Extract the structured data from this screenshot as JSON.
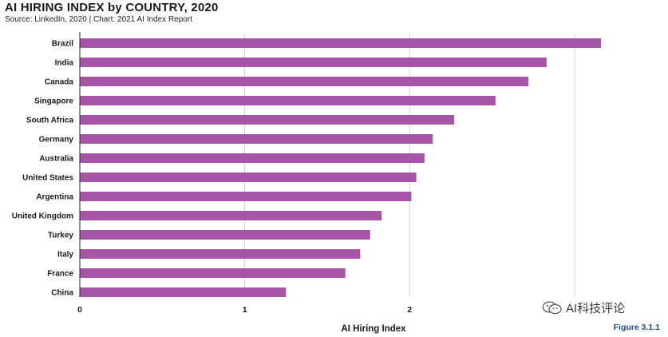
{
  "header": {
    "title": "AI HIRING INDEX by COUNTRY, 2020",
    "subtitle": "Source: LinkedIn, 2020 | Chart: 2021 AI Index Report"
  },
  "watermark": {
    "text": "AI科技评论",
    "icon": "wechat-logo-icon"
  },
  "figure_label": "Figure 3.1.1",
  "colors": {
    "bar": "#a855a8",
    "grid": "#d0d0d0",
    "axis": "#222222",
    "figure_label": "#1f4e8c"
  },
  "chart_data": {
    "type": "bar",
    "orientation": "horizontal",
    "title": "AI HIRING INDEX by COUNTRY, 2020",
    "subtitle": "Source: LinkedIn, 2020 | Chart: 2021 AI Index Report",
    "xlabel": "AI Hiring Index",
    "ylabel": "",
    "xlim": [
      0,
      3.05
    ],
    "xticks": [
      0,
      1,
      2,
      3
    ],
    "xtick_labels": [
      "0",
      "1",
      "2",
      ""
    ],
    "grid": true,
    "categories": [
      "Brazil",
      "India",
      "Canada",
      "Singapore",
      "South Africa",
      "Germany",
      "Australia",
      "United States",
      "Argentina",
      "United Kingdom",
      "Turkey",
      "Italy",
      "France",
      "China"
    ],
    "values": [
      3.16,
      2.83,
      2.72,
      2.52,
      2.27,
      2.14,
      2.09,
      2.04,
      2.01,
      1.83,
      1.76,
      1.7,
      1.61,
      1.25
    ]
  }
}
